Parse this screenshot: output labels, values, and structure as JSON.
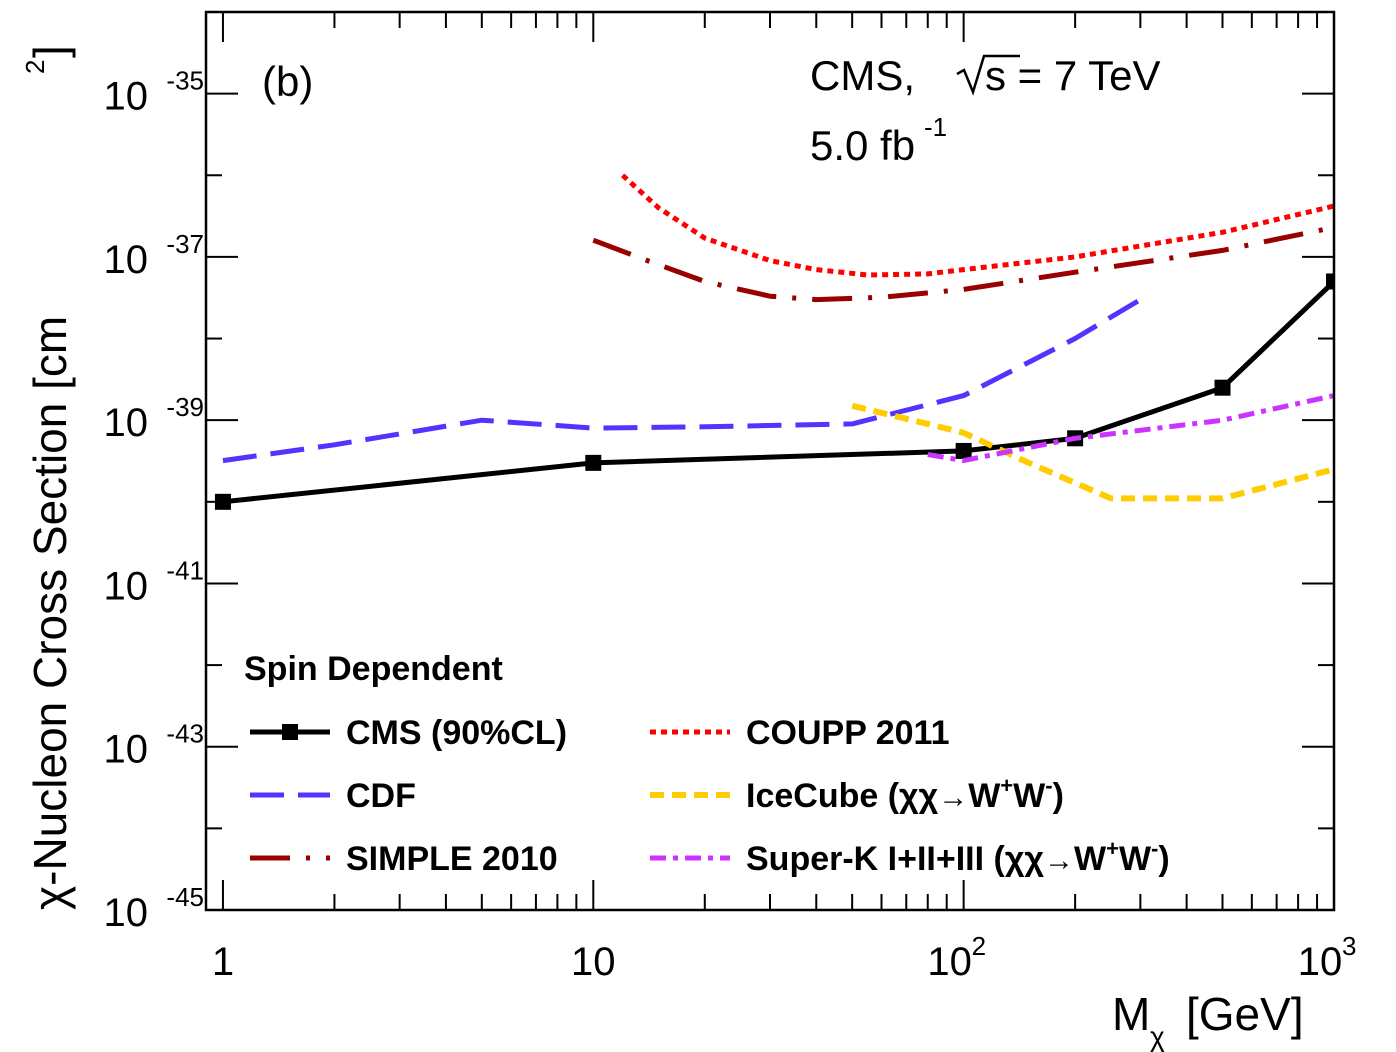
{
  "chart_data": {
    "type": "line",
    "panel_label": "(b)",
    "annotation": {
      "experiment": "CMS,",
      "energy": "s = 7 TeV",
      "lumi_value": "5.0 fb",
      "lumi_exp": "-1"
    },
    "xlabel": {
      "main": "M",
      "sub": "χ",
      "unit": "[GeV]"
    },
    "ylabel": {
      "main": "χ-Nucleon Cross Section [cm",
      "exp": "2",
      "close": "]"
    },
    "xscale": "log",
    "yscale": "log",
    "xlim": [
      0.9,
      1000
    ],
    "ylim": [
      1e-45,
      1e-34
    ],
    "x_ticks": [
      {
        "value": 1,
        "base": "1",
        "exp": ""
      },
      {
        "value": 10,
        "base": "10",
        "exp": ""
      },
      {
        "value": 100,
        "base": "10",
        "exp": "2"
      },
      {
        "value": 1000,
        "base": "10",
        "exp": "3"
      }
    ],
    "y_ticks": [
      {
        "value": 1e-45,
        "base": "10",
        "exp": "-45"
      },
      {
        "value": 1e-43,
        "base": "10",
        "exp": "-43"
      },
      {
        "value": 1e-41,
        "base": "10",
        "exp": "-41"
      },
      {
        "value": 1e-39,
        "base": "10",
        "exp": "-39"
      },
      {
        "value": 1e-37,
        "base": "10",
        "exp": "-37"
      },
      {
        "value": 1e-35,
        "base": "10",
        "exp": "-35"
      }
    ],
    "legend_title": "Spin Dependent",
    "series": [
      {
        "name": "CMS (90%CL)",
        "label_parts": [
          "CMS (90%CL)"
        ],
        "color": "#000000",
        "style": "solid",
        "markers": true,
        "x": [
          1,
          10,
          100,
          200,
          500,
          1000
        ],
        "y": [
          1e-40,
          3e-40,
          4.2e-40,
          6e-40,
          2.5e-39,
          5e-38
        ]
      },
      {
        "name": "CDF",
        "label_parts": [
          "CDF"
        ],
        "color": "#5533ff",
        "style": "dashed",
        "markers": false,
        "x": [
          1,
          2,
          5,
          10,
          20,
          50,
          100,
          200,
          300
        ],
        "y": [
          3.2e-40,
          5e-40,
          1e-39,
          8e-40,
          8.3e-40,
          9e-40,
          2e-39,
          1e-38,
          3e-38
        ]
      },
      {
        "name": "SIMPLE 2010",
        "label_parts": [
          "SIMPLE 2010"
        ],
        "color": "#990000",
        "style": "longdashdot",
        "markers": false,
        "x": [
          10,
          14,
          20,
          30,
          40,
          60,
          100,
          200,
          500,
          1000
        ],
        "y": [
          1.6e-37,
          9e-38,
          5e-38,
          3.3e-38,
          3e-38,
          3.2e-38,
          4e-38,
          6.5e-38,
          1.2e-37,
          2.3e-37
        ]
      },
      {
        "name": "COUPP 2011",
        "label_parts": [
          "COUPP 2011"
        ],
        "color": "#ff0000",
        "style": "dotted",
        "markers": false,
        "x": [
          12,
          15,
          20,
          30,
          40,
          55,
          80,
          100,
          200,
          500,
          1000
        ],
        "y": [
          1e-36,
          4e-37,
          1.7e-37,
          9e-38,
          7e-38,
          6e-38,
          6.2e-38,
          7e-38,
          1e-37,
          2e-37,
          4.2e-37
        ]
      },
      {
        "name": "IceCube (χχ→W+W-)",
        "label_parts": [
          "IceCube (χχ",
          "→",
          "W",
          "+",
          "W",
          "-",
          ")"
        ],
        "color": "#ffcc00",
        "style": "shortdash",
        "markers": false,
        "x": [
          50,
          80,
          100,
          150,
          250,
          500,
          1000
        ],
        "y": [
          1.5e-39,
          9e-40,
          7e-40,
          3e-40,
          1.1e-40,
          1.1e-40,
          2.5e-40
        ]
      },
      {
        "name": "Super-K I+II+III (χχ→W+W-)",
        "label_parts": [
          "Super-K I+II+III (χχ",
          "→",
          "W",
          "+",
          "W",
          "-",
          ")"
        ],
        "color": "#cc33ff",
        "style": "dashdot",
        "markers": false,
        "x": [
          80,
          100,
          200,
          500,
          1000
        ],
        "y": [
          3.8e-40,
          3.2e-40,
          6e-40,
          1e-39,
          2e-39
        ]
      }
    ],
    "legend_order": [
      0,
      3,
      1,
      4,
      2,
      5
    ]
  }
}
